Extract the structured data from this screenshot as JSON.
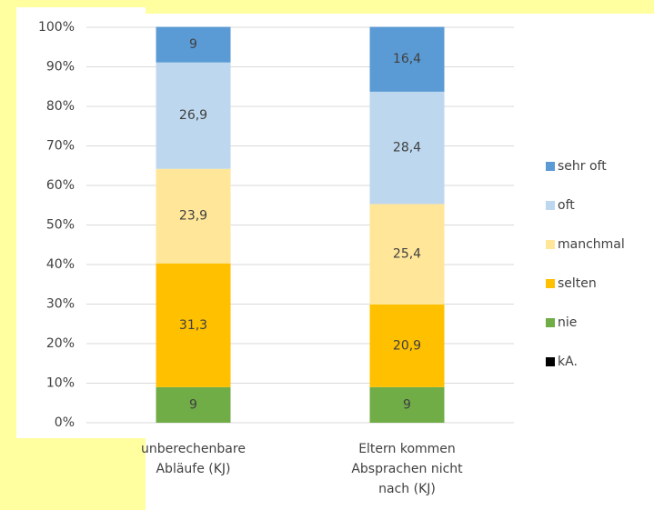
{
  "chart_data": {
    "type": "stacked_bar",
    "categories": [
      "unberechenbare Abläufe (KJ)",
      "Eltern kommen Absprachen nicht nach (KJ)"
    ],
    "series": [
      {
        "name": "kA.",
        "color": "#000000",
        "values": [
          0,
          0
        ]
      },
      {
        "name": "nie",
        "color": "#70ad47",
        "values": [
          9,
          9
        ],
        "value_labels": [
          "9",
          "9"
        ]
      },
      {
        "name": "selten",
        "color": "#ffc000",
        "values": [
          31.3,
          20.9
        ],
        "value_labels": [
          "31,3",
          "20,9"
        ]
      },
      {
        "name": "manchmal",
        "color": "#ffe699",
        "values": [
          23.9,
          25.4
        ],
        "value_labels": [
          "23,9",
          "25,4"
        ]
      },
      {
        "name": "oft",
        "color": "#bdd7ee",
        "values": [
          26.9,
          28.4
        ],
        "value_labels": [
          "26,9",
          "28,4"
        ]
      },
      {
        "name": "sehr oft",
        "color": "#5b9bd5",
        "values": [
          9,
          16.4
        ],
        "value_labels": [
          "9",
          "16,4"
        ]
      }
    ],
    "ylim": [
      0,
      100
    ],
    "yticks": [
      {
        "value": 0,
        "label": "0%"
      },
      {
        "value": 10,
        "label": "10%"
      },
      {
        "value": 20,
        "label": "20%"
      },
      {
        "value": 30,
        "label": "30%"
      },
      {
        "value": 40,
        "label": "40%"
      },
      {
        "value": 50,
        "label": "50%"
      },
      {
        "value": 60,
        "label": "60%"
      },
      {
        "value": 70,
        "label": "70%"
      },
      {
        "value": 80,
        "label": "80%"
      },
      {
        "value": 90,
        "label": "90%"
      },
      {
        "value": 100,
        "label": "100%"
      }
    ],
    "grid": true,
    "legend": "right"
  }
}
